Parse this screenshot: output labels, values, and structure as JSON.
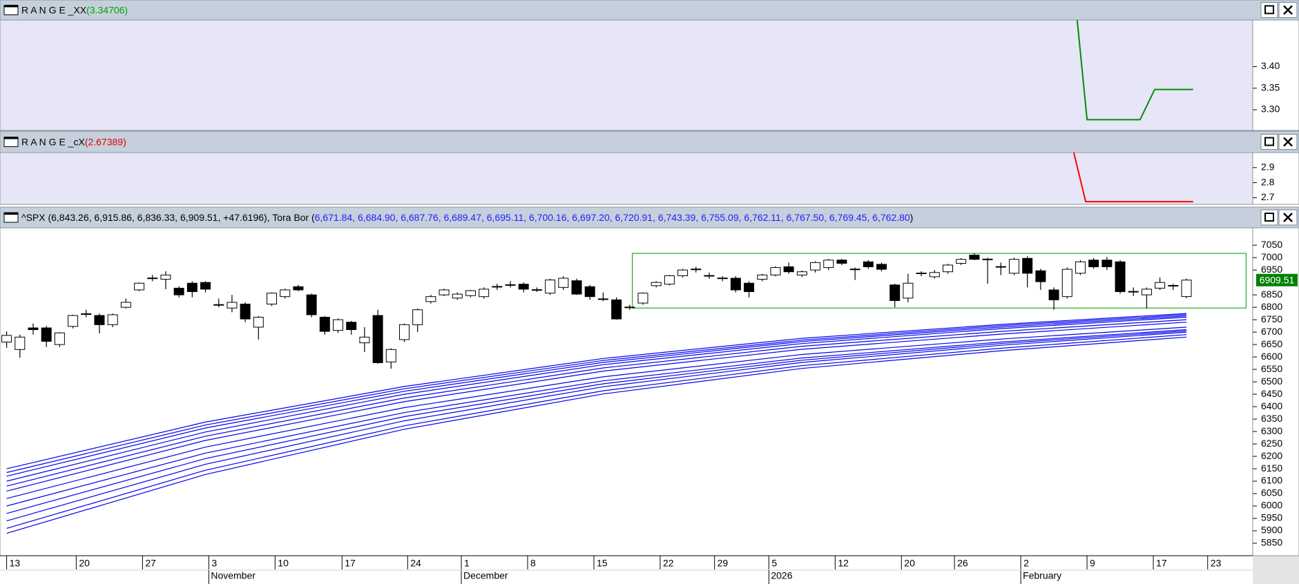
{
  "chart_data": [
    {
      "type": "line",
      "title": "R A N G E _XX",
      "title_value": "(3.34706)",
      "title_value_color": "#00a000",
      "background": "#e6e6f8",
      "xlim": [
        -0.5,
        94
      ],
      "ylim": [
        3.252,
        3.508
      ],
      "yticks": [
        {
          "value": 3.4,
          "label": "3.40"
        },
        3.35,
        {
          "value": 3.3,
          "label": "3.30"
        }
      ],
      "x": [
        80.75,
        81.5,
        85.5,
        86.6,
        89.5
      ],
      "series": [
        {
          "color": "#008c00",
          "values": [
            3.51,
            3.277,
            3.277,
            3.347,
            3.347
          ]
        }
      ]
    },
    {
      "type": "line",
      "title": "R A N G E _cX",
      "title_value": "(2.67389)",
      "title_value_color": "#e00000",
      "background": "#e6e6f8",
      "xlim": [
        -0.5,
        94
      ],
      "ylim": [
        2.656,
        3.0
      ],
      "yticks": [
        2.9,
        2.8,
        2.7
      ],
      "x": [
        80.5,
        81.4,
        89.5
      ],
      "series": [
        {
          "color": "#ff0000",
          "values": [
            3.0,
            2.674,
            2.674
          ]
        }
      ]
    },
    {
      "type": "candlestick",
      "title": "^SPX (6,843.26, 6,915.86, 6,836.33, 6,909.51, +47.6196), Tora Bor (",
      "title_value": "6,671.84, 6,684.90, 6,687.76, 6,689.47, 6,695.11, 6,700.16, 6,697.20, 6,720.91, 6,743.39, 6,755.09, 6,762.11, 6,767.50, 6,769.45, 6,762.80",
      "title_value_color": "#2020ff",
      "title_end": ")",
      "background": "#ffffff",
      "xlim": [
        -0.5,
        94
      ],
      "ylim": [
        5800,
        7120
      ],
      "yticks": [
        7050,
        7000,
        6950,
        6850,
        6800,
        6750,
        6700,
        6650,
        6600,
        6550,
        6500,
        6450,
        6400,
        6350,
        6300,
        6250,
        6200,
        6150,
        6100,
        6050,
        6000,
        5950,
        5900,
        5850
      ],
      "xticks": [
        {
          "value": 0,
          "label": "13"
        },
        {
          "value": 5.25,
          "label": "20"
        },
        {
          "value": 10.25,
          "label": "27"
        },
        {
          "value": 15.25,
          "label": "3"
        },
        {
          "value": 20.25,
          "label": "10"
        },
        {
          "value": 25.3,
          "label": "17"
        },
        {
          "value": 30.25,
          "label": "24"
        },
        {
          "value": 34.3,
          "label": "1"
        },
        {
          "value": 39.3,
          "label": "8"
        },
        {
          "value": 44.3,
          "label": "15"
        },
        {
          "value": 49.3,
          "label": "22"
        },
        {
          "value": 53.4,
          "label": "29"
        },
        {
          "value": 57.5,
          "label": "5"
        },
        {
          "value": 62.5,
          "label": "12"
        },
        {
          "value": 67.5,
          "label": "20"
        },
        {
          "value": 71.5,
          "label": "26"
        },
        {
          "value": 76.5,
          "label": "2"
        },
        {
          "value": 81.5,
          "label": "9"
        },
        {
          "value": 86.5,
          "label": "17"
        },
        {
          "value": 90.6,
          "label": "23"
        }
      ],
      "month_ticks": [
        {
          "value": 15.25,
          "label": "November"
        },
        {
          "value": 34.3,
          "label": "December"
        },
        {
          "value": 57.5,
          "label": "2026"
        },
        {
          "value": 76.5,
          "label": "February"
        }
      ],
      "up_color": "#ffffff",
      "down_color": "#000000",
      "open": [
        6660,
        6630,
        6717,
        6717,
        6650,
        6723,
        6772,
        6767,
        6730,
        6800,
        6870,
        6916,
        6913,
        6877,
        6897,
        6900,
        6811,
        6797,
        6813,
        6720,
        6813,
        6843,
        6883,
        6850,
        6760,
        6707,
        6740,
        6657,
        6767,
        6580,
        6670,
        6730,
        6823,
        6850,
        6837,
        6847,
        6843,
        6882,
        6889,
        6893,
        6869,
        6857,
        6880,
        6907,
        6883,
        6834,
        6830,
        6799,
        6817,
        6887,
        6893,
        6927,
        6952,
        6928,
        6916,
        6917,
        6897,
        6913,
        6930,
        6963,
        6930,
        6950,
        6960,
        6990,
        6954,
        6983,
        6973,
        6890,
        6837,
        6936,
        6923,
        6943,
        6977,
        7010,
        6994,
        6964,
        6937,
        6997,
        6947,
        6870,
        6843,
        6937,
        6990,
        6990,
        6983,
        6864,
        6850,
        6877,
        6886,
        6843.26
      ],
      "high": [
        6703,
        6690,
        6735,
        6725,
        6700,
        6770,
        6790,
        6775,
        6775,
        6835,
        6900,
        6930,
        6945,
        6885,
        6905,
        6905,
        6835,
        6850,
        6820,
        6765,
        6860,
        6875,
        6890,
        6855,
        6765,
        6755,
        6745,
        6720,
        6790,
        6635,
        6735,
        6795,
        6850,
        6875,
        6860,
        6870,
        6880,
        6895,
        6905,
        6900,
        6880,
        6915,
        6925,
        6915,
        6890,
        6860,
        6840,
        6810,
        6860,
        6905,
        6930,
        6955,
        6963,
        6940,
        6925,
        6925,
        6905,
        6935,
        6965,
        6980,
        6948,
        6985,
        6995,
        6995,
        6960,
        6990,
        6980,
        6895,
        6935,
        6945,
        6950,
        6975,
        6998,
        7017,
        7000,
        6980,
        7000,
        7005,
        6955,
        6880,
        6960,
        6990,
        6998,
        7002,
        6990,
        6880,
        6880,
        6920,
        6895,
        6915.86
      ],
      "low": [
        6637,
        6597,
        6690,
        6640,
        6640,
        6715,
        6760,
        6695,
        6720,
        6795,
        6865,
        6905,
        6873,
        6840,
        6840,
        6860,
        6800,
        6780,
        6740,
        6670,
        6805,
        6835,
        6865,
        6760,
        6690,
        6697,
        6690,
        6620,
        6573,
        6553,
        6660,
        6700,
        6815,
        6845,
        6830,
        6840,
        6835,
        6870,
        6880,
        6860,
        6862,
        6850,
        6870,
        6850,
        6830,
        6825,
        6750,
        6790,
        6810,
        6880,
        6888,
        6920,
        6940,
        6915,
        6905,
        6860,
        6840,
        6905,
        6925,
        6935,
        6922,
        6940,
        6950,
        6970,
        6910,
        6955,
        6945,
        6800,
        6820,
        6925,
        6915,
        6935,
        6970,
        6990,
        6895,
        6930,
        6930,
        6880,
        6870,
        6790,
        6835,
        6930,
        6955,
        6950,
        6855,
        6845,
        6795,
        6870,
        6870,
        6836.33
      ],
      "close": [
        6687,
        6680,
        6710,
        6663,
        6697,
        6767,
        6774,
        6730,
        6770,
        6820,
        6897,
        6918,
        6930,
        6850,
        6863,
        6873,
        6809,
        6820,
        6753,
        6760,
        6857,
        6870,
        6870,
        6770,
        6703,
        6750,
        6710,
        6680,
        6577,
        6630,
        6730,
        6790,
        6843,
        6870,
        6853,
        6867,
        6873,
        6884,
        6891,
        6873,
        6871,
        6910,
        6917,
        6853,
        6843,
        6832,
        6753,
        6801,
        6857,
        6900,
        6927,
        6950,
        6954,
        6926,
        6918,
        6870,
        6863,
        6930,
        6960,
        6943,
        6943,
        6980,
        6990,
        6977,
        6952,
        6963,
        6953,
        6827,
        6897,
        6938,
        6940,
        6970,
        6993,
        6993,
        6992,
        6962,
        6993,
        6937,
        6903,
        6830,
        6953,
        6983,
        6963,
        6963,
        6863,
        6862,
        6873,
        6900,
        6888,
        6909.51
      ],
      "bands": {
        "color": "#0000ee",
        "x": [
          0,
          15,
          30,
          45,
          60,
          75,
          89
        ],
        "series": [
          {
            "values": [
              6150,
              6338,
              6481,
              6594,
              6675,
              6731,
              6775
            ]
          },
          {
            "values": [
              6135,
              6326,
              6472,
              6586,
              6668,
              6726,
              6770
            ]
          },
          {
            "values": [
              6120,
              6314,
              6462,
              6578,
              6662,
              6720,
              6765
            ]
          },
          {
            "values": [
              6100,
              6298,
              6450,
              6569,
              6654,
              6714,
              6760
            ]
          },
          {
            "values": [
              6080,
              6281,
              6435,
              6556,
              6643,
              6703,
              6750
            ]
          },
          {
            "values": [
              6060,
              6264,
              6420,
              6543,
              6631,
              6692,
              6740
            ]
          },
          {
            "values": [
              6030,
              6237,
              6396,
              6520,
              6610,
              6672,
              6720
            ]
          },
          {
            "values": [
              6000,
              6213,
              6376,
              6504,
              6596,
              6660,
              6710
            ]
          },
          {
            "values": [
              5970,
              6191,
              6360,
              6492,
              6587,
              6654,
              6705
            ]
          },
          {
            "values": [
              5940,
              6168,
              6343,
              6480,
              6578,
              6647,
              6700
            ]
          },
          {
            "values": [
              5910,
              6144,
              6323,
              6464,
              6565,
              6635,
              6690
            ]
          },
          {
            "values": [
              5890,
              6127,
              6309,
              6451,
              6554,
              6625,
              6680
            ]
          }
        ]
      },
      "box": {
        "x": [
          47.2,
          93.5
        ],
        "y": [
          6797,
          7017
        ],
        "color": "#22aa22"
      },
      "last_price": 6909.51,
      "last_price_color": "#008000"
    }
  ]
}
